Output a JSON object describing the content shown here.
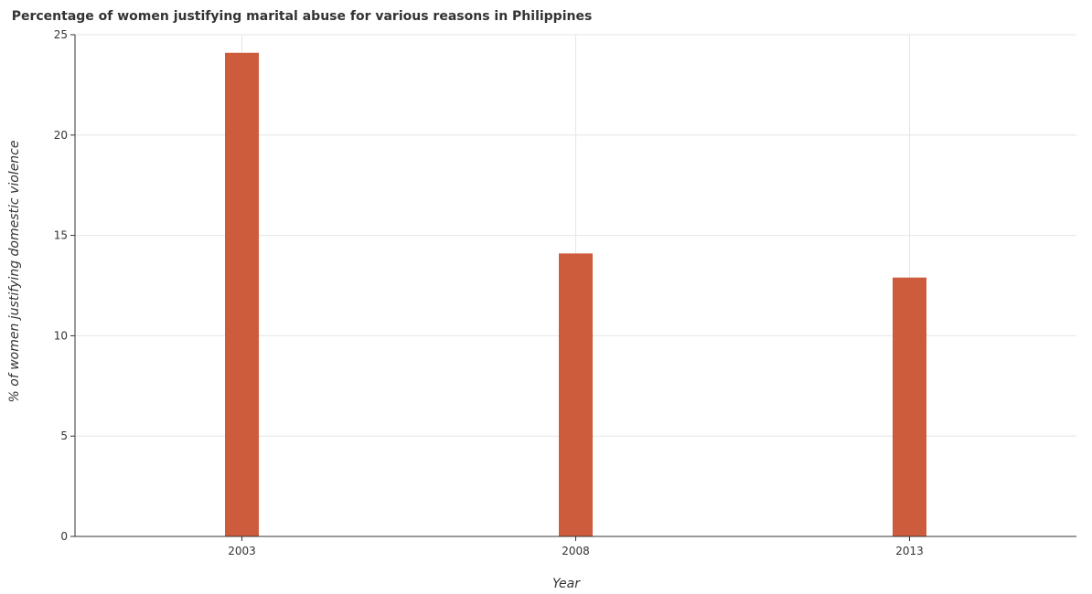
{
  "chart_data": {
    "type": "bar",
    "title": "Percentage of women justifying marital abuse for various reasons in Philippines",
    "xlabel": "Year",
    "ylabel": "% of women justifying domestic violence",
    "categories": [
      "2003",
      "2008",
      "2013"
    ],
    "values": [
      24.1,
      14.1,
      12.9
    ],
    "ylim": [
      0,
      25
    ],
    "yticks": [
      "0",
      "5",
      "10",
      "15",
      "20",
      "25"
    ],
    "grid": true,
    "bar_color": "#cd5c3c"
  }
}
